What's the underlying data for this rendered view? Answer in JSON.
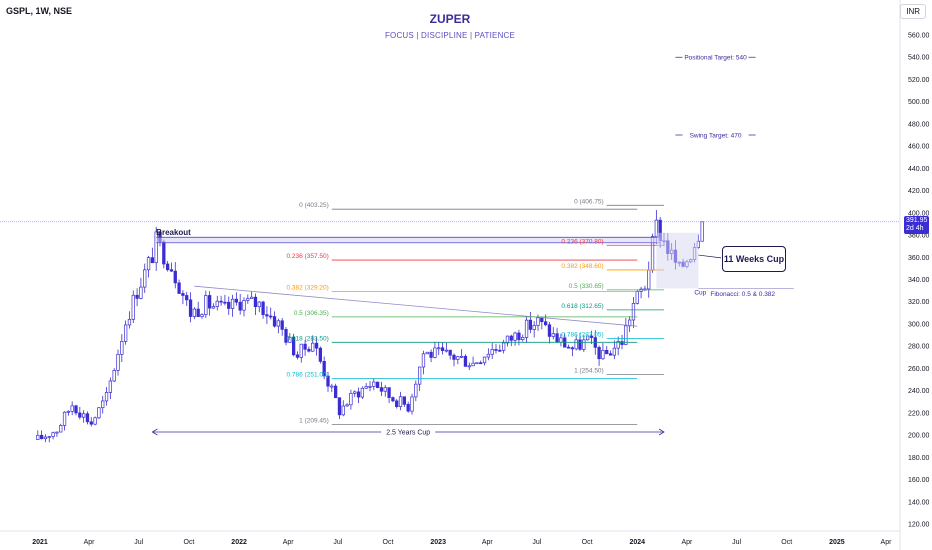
{
  "header": {
    "symbol": "GSPL, 1W, NSE",
    "currency": "INR"
  },
  "title": "ZUPER",
  "subtitle": "FOCUS | DISCIPLINE | PATIENCE",
  "price_badge": {
    "price": "391.95",
    "countdown": "2d 4h"
  },
  "colors": {
    "candle": "#3a2dd2",
    "accent": "#3a2d9c"
  },
  "chart_data": {
    "type": "candlestick",
    "y_axis": {
      "min": 120,
      "max": 560,
      "ticks": [
        120,
        140,
        160,
        180,
        200,
        220,
        240,
        260,
        280,
        300,
        320,
        340,
        360,
        380,
        400,
        420,
        440,
        460,
        480,
        500,
        520,
        540,
        560
      ]
    },
    "x_ticks": [
      "2021",
      "Apr",
      "Jul",
      "Oct",
      "2022",
      "Apr",
      "Jul",
      "Oct",
      "2023",
      "Apr",
      "Jul",
      "Oct",
      "2024",
      "Apr",
      "Jul",
      "Oct",
      "2025",
      "Apr"
    ],
    "weekly_closes": [
      {
        "date": "2020-12-28",
        "close": 196
      },
      {
        "date": "2021-02-01",
        "close": 205
      },
      {
        "date": "2021-03-01",
        "close": 228
      },
      {
        "date": "2021-04-05",
        "close": 211
      },
      {
        "date": "2021-05-03",
        "close": 234
      },
      {
        "date": "2021-06-07",
        "close": 302
      },
      {
        "date": "2021-06-28",
        "close": 330
      },
      {
        "date": "2021-07-26",
        "close": 362
      },
      {
        "date": "2021-08-02",
        "close": 374
      },
      {
        "date": "2021-08-30",
        "close": 352
      },
      {
        "date": "2021-10-04",
        "close": 310
      },
      {
        "date": "2021-11-01",
        "close": 318
      },
      {
        "date": "2021-12-06",
        "close": 313
      },
      {
        "date": "2022-01-03",
        "close": 320
      },
      {
        "date": "2022-02-07",
        "close": 318
      },
      {
        "date": "2022-03-14",
        "close": 300
      },
      {
        "date": "2022-04-18",
        "close": 272
      },
      {
        "date": "2022-05-16",
        "close": 285
      },
      {
        "date": "2022-06-13",
        "close": 248
      },
      {
        "date": "2022-07-04",
        "close": 222
      },
      {
        "date": "2022-08-01",
        "close": 237
      },
      {
        "date": "2022-09-05",
        "close": 248
      },
      {
        "date": "2022-10-03",
        "close": 235
      },
      {
        "date": "2022-11-07",
        "close": 226
      },
      {
        "date": "2022-12-05",
        "close": 274
      },
      {
        "date": "2023-01-09",
        "close": 272
      },
      {
        "date": "2023-02-06",
        "close": 270
      },
      {
        "date": "2023-03-06",
        "close": 265
      },
      {
        "date": "2023-04-03",
        "close": 276
      },
      {
        "date": "2023-05-01",
        "close": 282
      },
      {
        "date": "2023-06-05",
        "close": 295
      },
      {
        "date": "2023-07-03",
        "close": 302
      },
      {
        "date": "2023-08-07",
        "close": 286
      },
      {
        "date": "2023-09-04",
        "close": 278
      },
      {
        "date": "2023-10-02",
        "close": 285
      },
      {
        "date": "2023-10-30",
        "close": 270
      },
      {
        "date": "2023-12-04",
        "close": 285
      },
      {
        "date": "2023-12-25",
        "close": 318
      },
      {
        "date": "2024-01-15",
        "close": 335
      },
      {
        "date": "2024-02-05",
        "close": 388
      },
      {
        "date": "2024-02-26",
        "close": 368
      },
      {
        "date": "2024-03-18",
        "close": 348
      },
      {
        "date": "2024-04-08",
        "close": 365
      },
      {
        "date": "2024-04-29",
        "close": 391.95
      }
    ],
    "annotations": [
      {
        "label": "Breakout"
      },
      {
        "label": "2.5 Years Cup"
      },
      {
        "label": "11 Weeks Cup"
      },
      {
        "label": "Cup"
      },
      {
        "label": "Fibonacci: 0.5 & 0.382"
      },
      {
        "label": "Positional Target: 540",
        "value": 540
      },
      {
        "label": "Swing Target: 470",
        "value": 470
      }
    ],
    "fib_left": [
      {
        "label": "0 (403.25)",
        "value": 403.25,
        "color": "#787b86"
      },
      {
        "label": "0.236 (357.50)",
        "value": 357.5,
        "color": "#f23645"
      },
      {
        "label": "0.382 (329.20)",
        "value": 329.2,
        "color": "#ff9800"
      },
      {
        "label": "0.5 (306.35)",
        "value": 306.35,
        "color": "#4caf50"
      },
      {
        "label": "0.618 (283.50)",
        "value": 283.5,
        "color": "#089981"
      },
      {
        "label": "0.786 (251.00)",
        "value": 251.0,
        "color": "#00bcd4"
      },
      {
        "label": "1 (209.45)",
        "value": 209.45,
        "color": "#787b86"
      }
    ],
    "fib_right": [
      {
        "label": "0 (406.75)",
        "value": 406.75,
        "color": "#787b86"
      },
      {
        "label": "0.236 (370.80)",
        "value": 370.8,
        "color": "#f23645"
      },
      {
        "label": "0.382 (348.60)",
        "value": 348.6,
        "color": "#ff9800"
      },
      {
        "label": "0.5 (330.65)",
        "value": 330.65,
        "color": "#4caf50"
      },
      {
        "label": "0.618 (312.65)",
        "value": 312.65,
        "color": "#089981"
      },
      {
        "label": "0.786 (287.05)",
        "value": 287.05,
        "color": "#00bcd4"
      },
      {
        "label": "1 (254.50)",
        "value": 254.5,
        "color": "#787b86"
      }
    ],
    "breakout_level": 376,
    "ylabel": "",
    "xlabel": ""
  }
}
